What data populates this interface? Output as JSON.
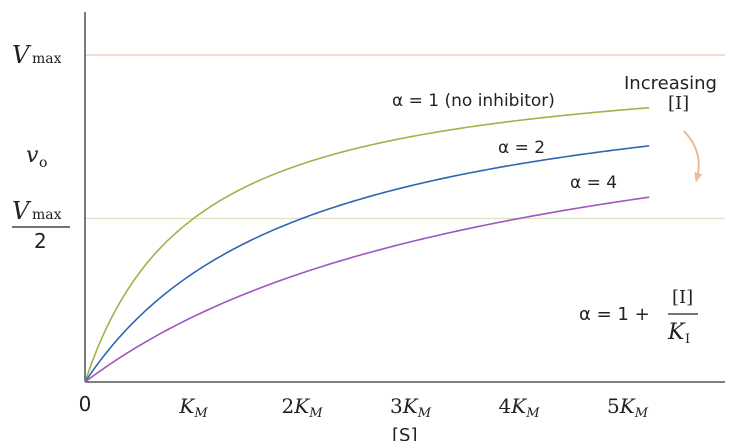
{
  "chart_data": {
    "type": "line",
    "x_range": [
      0,
      5.8
    ],
    "y_range": [
      0,
      1.2
    ],
    "x_ticks": [
      {
        "value": 0,
        "label": "0",
        "math": false
      },
      {
        "value": 1,
        "coef": "",
        "math": true
      },
      {
        "value": 2,
        "coef": "2",
        "math": true
      },
      {
        "value": 3,
        "coef": "3",
        "math": true
      },
      {
        "value": 4,
        "coef": "4",
        "math": true
      },
      {
        "value": 5,
        "coef": "5",
        "math": true
      }
    ],
    "x_tick_symbol": "K",
    "x_tick_subscript": "M",
    "xlabel": "[S]",
    "ylabel_symbol": "v",
    "ylabel_subscript": "o",
    "reference_lines": [
      {
        "y": 1.0,
        "label_symbol": "V",
        "label_subscript": "max",
        "color": "#e6c9b6"
      },
      {
        "y": 0.5,
        "label_symbol": "V",
        "label_subscript": "max",
        "label_denominator": "2",
        "color": "#e0e2c8"
      }
    ],
    "series": [
      {
        "name": "α = 1 (no inhibitor)",
        "alpha": 1,
        "color": "#9ab648"
      },
      {
        "name": "α = 2",
        "alpha": 2,
        "color": "#2f66b3"
      },
      {
        "name": "α = 4",
        "alpha": 4,
        "color": "#a056c2"
      }
    ],
    "x_max_curve": 5.2,
    "annotation": {
      "line1": "Increasing",
      "line2": "[I]",
      "arrow_color": "#eebb9a"
    },
    "formula": {
      "lhs": "α = 1 +",
      "numerator": "[I]",
      "denominator_symbol": "K",
      "denominator_subscript": "I"
    }
  }
}
